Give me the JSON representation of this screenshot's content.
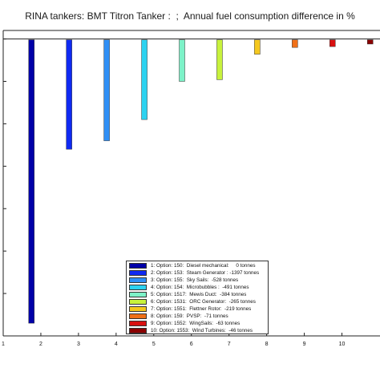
{
  "chart_data": {
    "type": "bar",
    "title": "RINA tankers: BMT Titron Tanker :  ;  Annual fuel consumption difference in %",
    "xlabel": "",
    "ylabel": "",
    "x_ticks": [
      1,
      2,
      3,
      4,
      5,
      6,
      7,
      8,
      9,
      10
    ],
    "xlim": [
      1,
      10.5
    ],
    "ylim": [
      -35,
      1
    ],
    "grid": false,
    "legend_position": "bottom-center",
    "bars": [
      {
        "x": 1.75,
        "value": -33.5,
        "color": "#0000a8",
        "label": "1: Option: 150:  Diesel mechanical:     0 tonnes"
      },
      {
        "x": 2.75,
        "value": -13.0,
        "color": "#0f2af2",
        "label": "2: Option: 153:  Steam Generator : -1397 tonnes"
      },
      {
        "x": 3.75,
        "value": -12.0,
        "color": "#2f8ff5",
        "label": "3: Option: 155:  Sky Sails:  -528 tonnes"
      },
      {
        "x": 4.75,
        "value": -9.5,
        "color": "#2cd2f0",
        "label": "4: Option: 154:  Microbubbles :  -491 tonnes"
      },
      {
        "x": 5.75,
        "value": -5.0,
        "color": "#7df2c8",
        "label": "5: Option: 1517:  Mewis Duct:  -384 tonnes"
      },
      {
        "x": 6.75,
        "value": -4.8,
        "color": "#c8f23c",
        "label": "6: Option: 1531:  ORC Generator:  -265 tonnes"
      },
      {
        "x": 7.75,
        "value": -1.8,
        "color": "#f5c81e",
        "label": "7: Option: 1551:  Flettner Rotor:  -219 tonnes"
      },
      {
        "x": 8.75,
        "value": -1.0,
        "color": "#f07018",
        "label": "8: Option: 159:  PVSP:  -71 tonnes"
      },
      {
        "x": 9.75,
        "value": -0.9,
        "color": "#d81010",
        "label": "9: Option: 1552:  WingSails:  -63 tonnes"
      },
      {
        "x": 10.75,
        "value": -0.6,
        "color": "#8a0000",
        "label": "10: Option: 1553:  Wind Turbines:  -46 tonnes"
      }
    ]
  }
}
